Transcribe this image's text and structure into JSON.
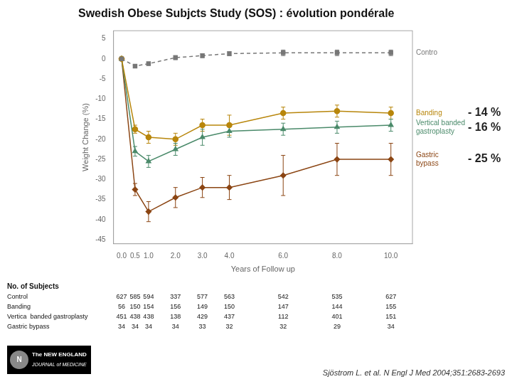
{
  "chart_data": {
    "type": "line",
    "title": "Swedish Obese Subjcts Study (SOS) : évolution pondérale",
    "xlabel": "Years of Follow up",
    "ylabel": "Weight Change (%)",
    "x": [
      0.0,
      0.5,
      1.0,
      2.0,
      3.0,
      4.0,
      6.0,
      8.0,
      10.0
    ],
    "xlim": [
      -0.3,
      10.8
    ],
    "ylim": [
      -46,
      7
    ],
    "xticks": [
      {
        "value": 0,
        "label": "0.0"
      },
      {
        "value": 0.5,
        "label": "0.5"
      },
      {
        "value": 1,
        "label": "1.0"
      },
      {
        "value": 2,
        "label": "2.0"
      },
      {
        "value": 3,
        "label": "3.0"
      },
      {
        "value": 4,
        "label": "4.0"
      },
      {
        "value": 6,
        "label": "6.0"
      },
      {
        "value": 8,
        "label": "8.0"
      },
      {
        "value": 10,
        "label": "10.0"
      }
    ],
    "yticks": [
      5,
      0,
      -5,
      -10,
      -15,
      -20,
      -25,
      -30,
      -35,
      -40,
      -45
    ],
    "grid": false,
    "series": [
      {
        "name": "Contro",
        "color": "#777777",
        "marker": "square",
        "line_style": "dashed",
        "values": [
          0.0,
          -1.8,
          -1.2,
          0.3,
          0.8,
          1.3,
          1.5,
          1.5,
          1.5
        ],
        "errors": [
          0.2,
          0.4,
          0.4,
          0.5,
          0.5,
          0.5,
          0.7,
          0.7,
          0.7
        ]
      },
      {
        "name": "Banding",
        "color": "#b8860b",
        "marker": "circle",
        "line_style": "solid",
        "values": [
          0.0,
          -17.5,
          -19.5,
          -20.0,
          -16.5,
          -16.5,
          -13.5,
          -13.0,
          -13.5
        ],
        "errors": [
          0.2,
          1.0,
          1.5,
          1.5,
          1.5,
          2.5,
          1.5,
          1.5,
          1.5
        ]
      },
      {
        "name": "Vertical banded\ngastroplasty",
        "color": "#4a8a6a",
        "marker": "triangle",
        "line_style": "solid",
        "values": [
          0.0,
          -23.0,
          -25.5,
          -22.5,
          -19.5,
          -18.0,
          -17.5,
          -17.0,
          -16.5
        ],
        "errors": [
          0.2,
          1.2,
          1.5,
          1.5,
          2.0,
          1.5,
          1.5,
          1.5,
          1.5
        ]
      },
      {
        "name": "Gastric\nbypass",
        "color": "#8b4513",
        "marker": "diamond",
        "line_style": "solid",
        "values": [
          0.0,
          -32.5,
          -38.0,
          -34.5,
          -32.0,
          -32.0,
          -29.0,
          -25.0,
          -25.0
        ],
        "errors": [
          0.2,
          1.5,
          2.5,
          2.5,
          2.5,
          3.0,
          5.0,
          4.0,
          4.0
        ]
      }
    ],
    "annotations": [
      "- 14 %",
      "- 16 %",
      "- 25 %"
    ],
    "table": {
      "title": "No. of Subjects",
      "rows": [
        {
          "label": "Control",
          "values": [
            627,
            585,
            594,
            337,
            577,
            563,
            542,
            535,
            627
          ]
        },
        {
          "label": "Banding",
          "values": [
            56,
            150,
            154,
            156,
            149,
            150,
            147,
            144,
            155
          ]
        },
        {
          "label": "Vertica  banded gastroplasty",
          "values": [
            451,
            438,
            438,
            138,
            429,
            437,
            112,
            401,
            151
          ]
        },
        {
          "label": "Gastric bypass",
          "values": [
            34,
            34,
            34,
            34,
            33,
            32,
            32,
            29,
            34
          ]
        }
      ]
    },
    "citation": "Sjöstrom L. et al. N Engl J Med 2004;351:2683-2693",
    "logo_text": [
      "N",
      "The NEW ENGLAND",
      "JOURNAL of MEDICINE"
    ]
  }
}
